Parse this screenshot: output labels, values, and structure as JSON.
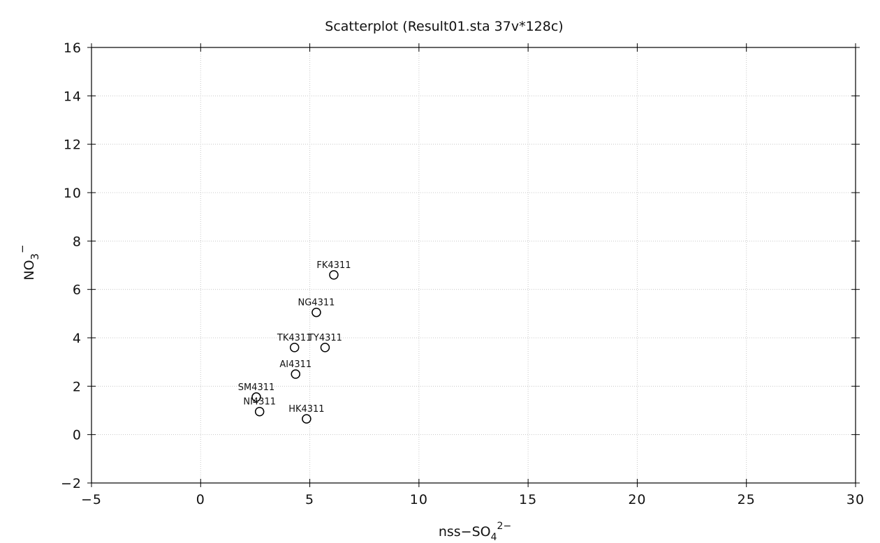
{
  "chart_data": {
    "type": "scatter",
    "title": "Scatterplot (Result01.sta 37v*128c)",
    "x_label": {
      "base": "nss−SO",
      "sub": "4",
      "sup": "2−"
    },
    "y_label": {
      "base": "NO",
      "sub": "3",
      "sup": "−"
    },
    "labels": [
      "FK4311",
      "NG4311",
      "TK4311",
      "TY4311",
      "AI4311",
      "SM4311",
      "NI4311",
      "HK4311"
    ],
    "x": [
      6.1,
      5.3,
      4.3,
      5.7,
      4.35,
      2.55,
      2.7,
      4.85
    ],
    "values": [
      6.6,
      5.05,
      3.6,
      3.6,
      2.5,
      1.55,
      0.95,
      0.65
    ],
    "color": "#000000",
    "xlim": [
      -5,
      30
    ],
    "xticks": [
      {
        "value": -5,
        "label": "−5"
      },
      0,
      5,
      10,
      15,
      20,
      25,
      30
    ],
    "ylim": [
      -2,
      16
    ],
    "yticks": [
      {
        "value": -2,
        "label": "−2"
      },
      0,
      2,
      4,
      6,
      8,
      10,
      12,
      14,
      16
    ],
    "grid": true
  }
}
